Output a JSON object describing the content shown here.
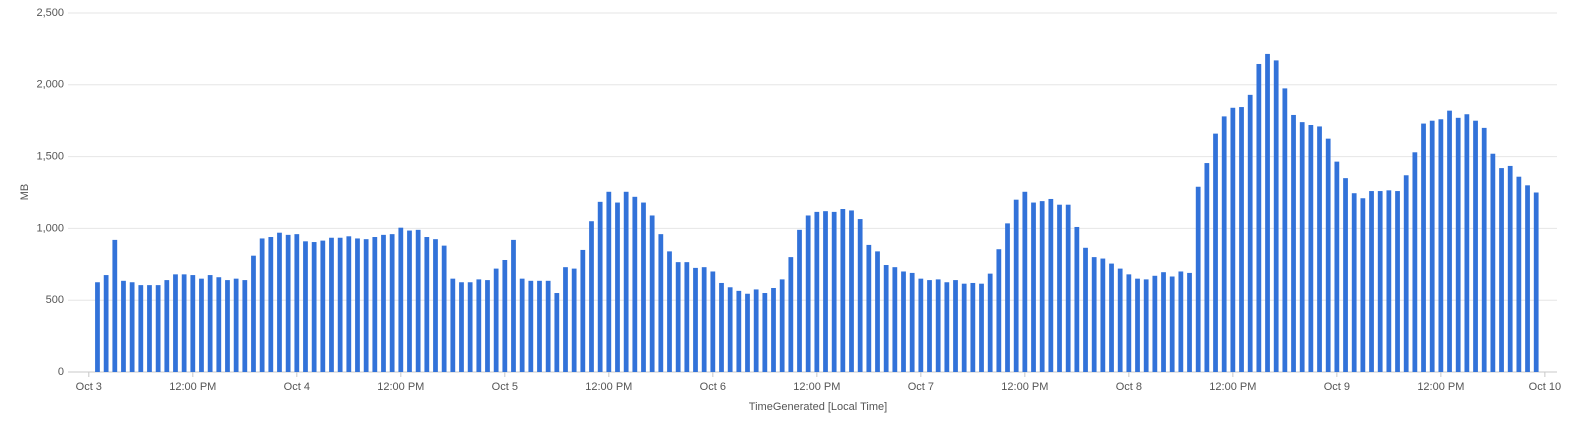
{
  "chart_data": {
    "type": "bar",
    "x_label": "TimeGenerated [Local Time]",
    "y_label": "MB",
    "color": "#3272d9",
    "grid": true,
    "x": [
      1,
      2,
      3,
      4,
      5,
      6,
      7,
      8,
      9,
      10,
      11,
      12,
      13,
      14,
      15,
      16,
      17,
      18,
      19,
      20,
      21,
      22,
      23,
      24,
      25,
      26,
      27,
      28,
      29,
      30,
      31,
      32,
      33,
      34,
      35,
      36,
      37,
      38,
      39,
      40,
      41,
      42,
      43,
      44,
      45,
      46,
      47,
      48,
      49,
      50,
      51,
      52,
      53,
      54,
      55,
      56,
      57,
      58,
      59,
      60,
      61,
      62,
      63,
      64,
      65,
      66,
      67,
      68,
      69,
      70,
      71,
      72,
      73,
      74,
      75,
      76,
      77,
      78,
      79,
      80,
      81,
      82,
      83,
      84,
      85,
      86,
      87,
      88,
      89,
      90,
      91,
      92,
      93,
      94,
      95,
      96,
      97,
      98,
      99,
      100,
      101,
      102,
      103,
      104,
      105,
      106,
      107,
      108,
      109,
      110,
      111,
      112,
      113,
      114,
      115,
      116,
      117,
      118,
      119,
      120,
      121,
      122,
      123,
      124,
      125,
      126,
      127,
      128,
      129,
      130,
      131,
      132,
      133,
      134,
      135,
      136,
      137,
      138,
      139,
      140,
      141,
      142,
      143,
      144,
      145,
      146,
      147,
      148,
      149,
      150,
      151,
      152,
      153,
      154,
      155,
      156,
      157,
      158,
      159,
      160,
      161,
      162,
      163,
      164,
      165,
      166,
      167
    ],
    "values": [
      625,
      675,
      920,
      635,
      625,
      605,
      605,
      605,
      640,
      680,
      680,
      675,
      650,
      675,
      660,
      640,
      650,
      640,
      810,
      930,
      940,
      970,
      955,
      960,
      910,
      905,
      915,
      935,
      935,
      945,
      930,
      925,
      940,
      955,
      960,
      1005,
      985,
      990,
      940,
      925,
      880,
      650,
      625,
      625,
      645,
      640,
      720,
      780,
      920,
      650,
      635,
      635,
      635,
      550,
      730,
      720,
      850,
      1050,
      1185,
      1255,
      1180,
      1255,
      1220,
      1180,
      1090,
      960,
      840,
      765,
      765,
      725,
      730,
      700,
      620,
      590,
      565,
      545,
      575,
      550,
      585,
      645,
      800,
      990,
      1090,
      1115,
      1120,
      1115,
      1135,
      1125,
      1065,
      885,
      840,
      745,
      730,
      700,
      690,
      650,
      640,
      645,
      625,
      640,
      615,
      620,
      615,
      685,
      855,
      1035,
      1200,
      1255,
      1180,
      1190,
      1205,
      1165,
      1165,
      1010,
      865,
      800,
      790,
      755,
      720,
      680,
      650,
      645,
      670,
      695,
      665,
      700,
      690,
      1290,
      1455,
      1660,
      1780,
      1840,
      1845,
      1930,
      2145,
      2215,
      2170,
      1975,
      1790,
      1740,
      1720,
      1710,
      1625,
      1465,
      1350,
      1245,
      1210,
      1260,
      1260,
      1265,
      1260,
      1370,
      1530,
      1730,
      1750,
      1760,
      1820,
      1770,
      1795,
      1750,
      1700,
      1520,
      1420,
      1435,
      1360,
      1300,
      1250
    ],
    "xlim": [
      -2.4,
      169.4
    ],
    "xticks": [
      {
        "value": 0,
        "label": "Oct 3"
      },
      {
        "value": 12,
        "label": "12:00 PM"
      },
      {
        "value": 24,
        "label": "Oct 4"
      },
      {
        "value": 36,
        "label": "12:00 PM"
      },
      {
        "value": 48,
        "label": "Oct 5"
      },
      {
        "value": 60,
        "label": "12:00 PM"
      },
      {
        "value": 72,
        "label": "Oct 6"
      },
      {
        "value": 84,
        "label": "12:00 PM"
      },
      {
        "value": 96,
        "label": "Oct 7"
      },
      {
        "value": 108,
        "label": "12:00 PM"
      },
      {
        "value": 120,
        "label": "Oct 8"
      },
      {
        "value": 132,
        "label": "12:00 PM"
      },
      {
        "value": 144,
        "label": "Oct 9"
      },
      {
        "value": 156,
        "label": "12:00 PM"
      },
      {
        "value": 168,
        "label": "Oct 10"
      }
    ],
    "ylim": [
      0,
      2500
    ],
    "yticks": [
      0,
      500,
      {
        "value": 1000,
        "label": "1,000"
      },
      {
        "value": 1500,
        "label": "1,500"
      },
      {
        "value": 2000,
        "label": "2,000"
      },
      {
        "value": 2500,
        "label": "2,500"
      }
    ]
  }
}
